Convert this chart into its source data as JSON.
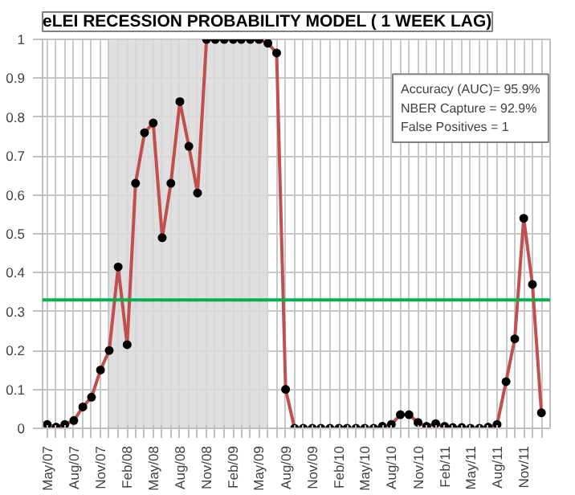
{
  "chart_data": {
    "type": "line",
    "title": "eLEI RECESSION PROBABILITY MODEL ( 1 WEEK LAG)",
    "x": [
      "2007-05",
      "2007-06",
      "2007-07",
      "2007-08",
      "2007-09",
      "2007-10",
      "2007-11",
      "2007-12",
      "2008-01",
      "2008-02",
      "2008-03",
      "2008-04",
      "2008-05",
      "2008-06",
      "2008-07",
      "2008-08",
      "2008-09",
      "2008-10",
      "2008-11",
      "2008-12",
      "2009-01",
      "2009-02",
      "2009-03",
      "2009-04",
      "2009-05",
      "2009-06",
      "2009-07",
      "2009-08",
      "2009-09",
      "2009-10",
      "2009-11",
      "2009-12",
      "2010-01",
      "2010-02",
      "2010-03",
      "2010-04",
      "2010-05",
      "2010-06",
      "2010-07",
      "2010-08",
      "2010-09",
      "2010-10",
      "2010-11",
      "2010-12",
      "2011-01",
      "2011-02",
      "2011-03",
      "2011-04",
      "2011-05",
      "2011-06",
      "2011-07",
      "2011-08",
      "2011-09",
      "2011-10",
      "2011-11",
      "2011-12",
      "2012-01"
    ],
    "series": [
      {
        "color": "#c0504d",
        "values": [
          0.01,
          0.003,
          0.01,
          0.02,
          0.055,
          0.08,
          0.15,
          0.2,
          0.415,
          0.215,
          0.63,
          0.76,
          0.785,
          0.49,
          0.63,
          0.84,
          0.725,
          0.605,
          1,
          1,
          1,
          1,
          1,
          1,
          1,
          0.99,
          0.965,
          0.1,
          0,
          0,
          0,
          0,
          0,
          0,
          0,
          0,
          0,
          0,
          0.005,
          0.01,
          0.035,
          0.035,
          0.015,
          0.005,
          0.012,
          0.005,
          0.002,
          0.002,
          0,
          0,
          0.003,
          0.01,
          0.12,
          0.23,
          0.54,
          0.37,
          0.04
        ]
      }
    ],
    "marker": "circle",
    "line_style": "solid",
    "xlim": [
      "2007-04-15",
      "2012-01-31"
    ],
    "xticks": [
      {
        "value": "2007-05",
        "label": "May/07"
      },
      {
        "value": "2007-06",
        "label": null
      },
      {
        "value": "2007-07",
        "label": null
      },
      {
        "value": "2007-08",
        "label": "Aug/07"
      },
      {
        "value": "2007-09",
        "label": null
      },
      {
        "value": "2007-10",
        "label": null
      },
      {
        "value": "2007-11",
        "label": "Nov/07"
      },
      {
        "value": "2007-12",
        "label": null
      },
      {
        "value": "2008-01",
        "label": null
      },
      {
        "value": "2008-02",
        "label": "Feb/08"
      },
      {
        "value": "2008-03",
        "label": null
      },
      {
        "value": "2008-04",
        "label": null
      },
      {
        "value": "2008-05",
        "label": "May/08"
      },
      {
        "value": "2008-06",
        "label": null
      },
      {
        "value": "2008-07",
        "label": null
      },
      {
        "value": "2008-08",
        "label": "Aug/08"
      },
      {
        "value": "2008-09",
        "label": null
      },
      {
        "value": "2008-10",
        "label": null
      },
      {
        "value": "2008-11",
        "label": "Nov/08"
      },
      {
        "value": "2008-12",
        "label": null
      },
      {
        "value": "2009-01",
        "label": null
      },
      {
        "value": "2009-02",
        "label": "Feb/09"
      },
      {
        "value": "2009-03",
        "label": null
      },
      {
        "value": "2009-04",
        "label": null
      },
      {
        "value": "2009-05",
        "label": "May/09"
      },
      {
        "value": "2009-06",
        "label": null
      },
      {
        "value": "2009-07",
        "label": null
      },
      {
        "value": "2009-08",
        "label": "Aug/09"
      },
      {
        "value": "2009-09",
        "label": null
      },
      {
        "value": "2009-10",
        "label": null
      },
      {
        "value": "2009-11",
        "label": "Nov/09"
      },
      {
        "value": "2009-12",
        "label": null
      },
      {
        "value": "2010-01",
        "label": null
      },
      {
        "value": "2010-02",
        "label": "Feb/10"
      },
      {
        "value": "2010-03",
        "label": null
      },
      {
        "value": "2010-04",
        "label": null
      },
      {
        "value": "2010-05",
        "label": "May/10"
      },
      {
        "value": "2010-06",
        "label": null
      },
      {
        "value": "2010-07",
        "label": null
      },
      {
        "value": "2010-08",
        "label": "Aug/10"
      },
      {
        "value": "2010-09",
        "label": null
      },
      {
        "value": "2010-10",
        "label": null
      },
      {
        "value": "2010-11",
        "label": "Nov/10"
      },
      {
        "value": "2010-12",
        "label": null
      },
      {
        "value": "2011-01",
        "label": null
      },
      {
        "value": "2011-02",
        "label": "Feb/11"
      },
      {
        "value": "2011-03",
        "label": null
      },
      {
        "value": "2011-04",
        "label": null
      },
      {
        "value": "2011-05",
        "label": "May/11"
      },
      {
        "value": "2011-06",
        "label": null
      },
      {
        "value": "2011-07",
        "label": null
      },
      {
        "value": "2011-08",
        "label": "Aug/11"
      },
      {
        "value": "2011-09",
        "label": null
      },
      {
        "value": "2011-10",
        "label": null
      },
      {
        "value": "2011-11",
        "label": "Nov/11"
      },
      {
        "value": "2011-12",
        "label": null
      },
      {
        "value": "2012-01",
        "label": null
      }
    ],
    "ylim": [
      0,
      1
    ],
    "yticks": [
      0,
      0.1,
      0.2,
      0.3,
      0.4,
      0.5,
      0.6,
      0.7,
      0.8,
      0.9,
      1
    ],
    "grid": true,
    "bands": [
      {
        "axis": "x",
        "from": "2007-12",
        "to": "2009-06",
        "color": "#d9d9d9"
      }
    ],
    "ref_lines": [
      {
        "axis": "y",
        "value": 0.33,
        "color": "#00b050"
      }
    ],
    "annotations": [
      "Accuracy (AUC)= 95.9%",
      "NBER Capture  = 92.9%",
      "False Positives  = 1"
    ]
  }
}
